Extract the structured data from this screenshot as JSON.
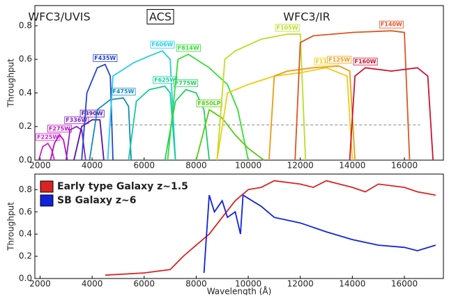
{
  "chart_data": [
    {
      "type": "line",
      "ylabel": "Throughput",
      "annotations": [
        "WFC3/UVIS",
        "ACS",
        "WFC3/IR"
      ],
      "xlim": [
        1800,
        17500
      ],
      "ylim": [
        0,
        0.92
      ],
      "xticks": [
        2000,
        4000,
        6000,
        8000,
        10000,
        12000,
        14000,
        16000
      ],
      "yticks": [
        {
          "value": 0,
          "label": "0.0"
        },
        0.2,
        0.4,
        0.6,
        0.8
      ],
      "hline": {
        "y": 0.21,
        "x": [
          4700,
          16600
        ]
      },
      "series": [
        {
          "name": "F225W",
          "color": "#cc22cc",
          "x": [
            1950,
            2100,
            2300,
            2450,
            2550
          ],
          "values": [
            0,
            0.08,
            0.1,
            0.06,
            0
          ]
        },
        {
          "name": "F275W",
          "color": "#bb11bb",
          "x": [
            2400,
            2550,
            2750,
            2900,
            3050
          ],
          "values": [
            0,
            0.1,
            0.15,
            0.12,
            0
          ]
        },
        {
          "name": "F336W",
          "color": "#8822cc",
          "x": [
            3000,
            3150,
            3400,
            3600,
            3750
          ],
          "values": [
            0,
            0.18,
            0.2,
            0.18,
            0
          ]
        },
        {
          "name": "F390W",
          "color": "#5511aa",
          "x": [
            3300,
            3600,
            4000,
            4300,
            4450
          ],
          "values": [
            0,
            0.2,
            0.24,
            0.24,
            0
          ]
        },
        {
          "name": "F435W",
          "color": "#2244cc",
          "x": [
            3600,
            3800,
            4200,
            4500,
            4700,
            4800
          ],
          "values": [
            0,
            0.4,
            0.55,
            0.57,
            0.5,
            0
          ]
        },
        {
          "name": "F475W",
          "color": "#1188bb",
          "x": [
            3900,
            4200,
            4700,
            5200,
            5400,
            5500
          ],
          "values": [
            0,
            0.3,
            0.36,
            0.37,
            0.32,
            0
          ]
        },
        {
          "name": "F606W",
          "color": "#22ccee",
          "x": [
            4600,
            4800,
            5600,
            6200,
            6700,
            7000,
            7200
          ],
          "values": [
            0,
            0.5,
            0.58,
            0.62,
            0.65,
            0.6,
            0
          ]
        },
        {
          "name": "F625W",
          "color": "#11cc99",
          "x": [
            5400,
            5700,
            6200,
            6800,
            7000,
            7200
          ],
          "values": [
            0,
            0.35,
            0.42,
            0.44,
            0.4,
            0
          ]
        },
        {
          "name": "F775W",
          "color": "#22cc66",
          "x": [
            6800,
            7200,
            7600,
            8000,
            8300,
            8500
          ],
          "values": [
            0,
            0.35,
            0.42,
            0.4,
            0.3,
            0
          ]
        },
        {
          "name": "F814W",
          "color": "#33dd33",
          "x": [
            6900,
            7300,
            7700,
            8500,
            9200,
            9600,
            10000
          ],
          "values": [
            0,
            0.6,
            0.63,
            0.55,
            0.45,
            0.3,
            0
          ]
        },
        {
          "name": "F850LP",
          "color": "#55cc11",
          "x": [
            8000,
            8500,
            9000,
            9500,
            10000,
            10600
          ],
          "values": [
            0,
            0.3,
            0.25,
            0.15,
            0.07,
            0
          ]
        },
        {
          "name": "F105W",
          "color": "#bbdd22",
          "x": [
            8800,
            9100,
            9500,
            10500,
            11500,
            12000,
            12200
          ],
          "values": [
            0,
            0.6,
            0.65,
            0.72,
            0.75,
            0.75,
            0
          ]
        },
        {
          "name": "F110W",
          "color": "#eecc11",
          "x": [
            8800,
            9200,
            10000,
            11000,
            12000,
            13000,
            13800,
            14000
          ],
          "values": [
            0,
            0.4,
            0.45,
            0.5,
            0.52,
            0.55,
            0.5,
            0
          ]
        },
        {
          "name": "F125W",
          "color": "#ee9911",
          "x": [
            10800,
            11000,
            11500,
            12500,
            13500,
            13900,
            14100
          ],
          "values": [
            0,
            0.5,
            0.53,
            0.55,
            0.56,
            0.53,
            0
          ]
        },
        {
          "name": "F140W",
          "color": "#dd5522",
          "x": [
            11800,
            12000,
            12500,
            14000,
            15500,
            16000,
            16200
          ],
          "values": [
            0,
            0.7,
            0.74,
            0.76,
            0.77,
            0.76,
            0
          ]
        },
        {
          "name": "F160W",
          "color": "#cc1133",
          "x": [
            13900,
            14100,
            14500,
            15500,
            16500,
            16900,
            17100
          ],
          "values": [
            0,
            0.5,
            0.55,
            0.53,
            0.55,
            0.5,
            0
          ]
        }
      ]
    },
    {
      "type": "line",
      "ylabel": "Throughput",
      "xlabel": "Wavelength (Å)",
      "xlim": [
        1800,
        17500
      ],
      "ylim": [
        0,
        0.94
      ],
      "xticks": [
        2000,
        4000,
        6000,
        8000,
        10000,
        12000,
        14000,
        16000
      ],
      "yticks": [
        {
          "value": 0,
          "label": "0.0"
        },
        0.2,
        0.4,
        0.6,
        0.8
      ],
      "legend": "upper left",
      "series": [
        {
          "name": "Early type Galaxy z~1.5",
          "color": "#dd2222",
          "x": [
            4500,
            6000,
            7000,
            7500,
            8000,
            8500,
            9000,
            9500,
            10000,
            10500,
            11000,
            12000,
            12500,
            13000,
            14000,
            14500,
            15000,
            16000,
            16500,
            17200
          ],
          "values": [
            0.03,
            0.05,
            0.08,
            0.2,
            0.3,
            0.4,
            0.55,
            0.7,
            0.8,
            0.82,
            0.88,
            0.85,
            0.82,
            0.88,
            0.82,
            0.78,
            0.85,
            0.82,
            0.78,
            0.75
          ]
        },
        {
          "name": "SB Galaxy z~6",
          "color": "#1122dd",
          "x": [
            8300,
            8400,
            8500,
            8700,
            9000,
            9200,
            9500,
            9700,
            9800,
            10500,
            11000,
            12000,
            13000,
            14000,
            15000,
            16000,
            16500,
            17200
          ],
          "values": [
            0.05,
            0.4,
            0.75,
            0.6,
            0.7,
            0.55,
            0.6,
            0.4,
            0.75,
            0.65,
            0.55,
            0.5,
            0.42,
            0.35,
            0.3,
            0.28,
            0.25,
            0.3
          ]
        }
      ]
    }
  ]
}
